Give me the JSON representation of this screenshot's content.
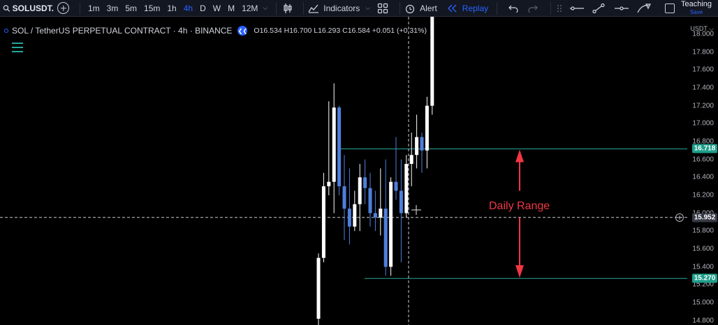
{
  "toolbar": {
    "symbol": "SOLUSDT.",
    "intervals": [
      "1m",
      "3m",
      "5m",
      "15m",
      "1h",
      "4h",
      "D",
      "W",
      "M",
      "12M"
    ],
    "active_interval": "4h",
    "indicators_label": "Indicators",
    "alert_label": "Alert",
    "replay_label": "Replay",
    "teaching_label": "Teaching",
    "teaching_sub": "Save"
  },
  "legend": {
    "title": "SOL / TetherUS PERPETUAL CONTRACT · 4h · BINANCE",
    "ohlc": "O16.534 H16.700 L16.293 C16.584 +0.051 (+0.31%)"
  },
  "axis": {
    "currency": "USDT",
    "ticks": [
      "18.000",
      "17.800",
      "17.600",
      "17.400",
      "17.200",
      "17.000",
      "16.800",
      "16.600",
      "16.400",
      "16.200",
      "16.000",
      "15.800",
      "15.600",
      "15.400",
      "15.200",
      "15.000",
      "14.800"
    ],
    "tags": {
      "upper": "16.718",
      "cross": "15.952",
      "lower": "15.270"
    }
  },
  "annotation": "Daily Range",
  "colors": {
    "up": "#ffffff",
    "down": "#4f7fdc",
    "accent": "#2962ff",
    "level": "#26a69a",
    "annotation": "#f23645"
  },
  "chart_data": {
    "type": "candlestick",
    "symbol": "SOL / TetherUS PERPETUAL CONTRACT",
    "timeframe": "4h",
    "price_range": [
      14.8,
      18.0
    ],
    "horizontal_levels": [
      16.718,
      15.27
    ],
    "crosshair_price": 15.952,
    "candles": [
      {
        "o": 14.82,
        "h": 15.55,
        "l": 14.6,
        "c": 15.5
      },
      {
        "o": 15.5,
        "h": 16.45,
        "l": 15.45,
        "c": 16.3
      },
      {
        "o": 16.3,
        "h": 17.25,
        "l": 16.2,
        "c": 16.35
      },
      {
        "o": 16.35,
        "h": 17.45,
        "l": 16.0,
        "c": 17.18
      },
      {
        "o": 17.18,
        "h": 17.2,
        "l": 16.2,
        "c": 16.3
      },
      {
        "o": 16.3,
        "h": 16.65,
        "l": 15.7,
        "c": 16.05
      },
      {
        "o": 16.05,
        "h": 16.5,
        "l": 15.65,
        "c": 15.85
      },
      {
        "o": 15.85,
        "h": 16.25,
        "l": 15.8,
        "c": 16.1
      },
      {
        "o": 16.1,
        "h": 16.55,
        "l": 15.8,
        "c": 16.4
      },
      {
        "o": 16.4,
        "h": 16.6,
        "l": 16.1,
        "c": 16.28
      },
      {
        "o": 16.28,
        "h": 16.45,
        "l": 15.85,
        "c": 16.0
      },
      {
        "o": 16.0,
        "h": 16.25,
        "l": 15.8,
        "c": 15.95
      },
      {
        "o": 15.95,
        "h": 16.5,
        "l": 15.75,
        "c": 16.05
      },
      {
        "o": 16.05,
        "h": 16.6,
        "l": 15.3,
        "c": 15.4
      },
      {
        "o": 15.4,
        "h": 16.4,
        "l": 15.3,
        "c": 16.35
      },
      {
        "o": 16.35,
        "h": 16.85,
        "l": 16.15,
        "c": 16.25
      },
      {
        "o": 16.25,
        "h": 16.6,
        "l": 15.45,
        "c": 16.0
      },
      {
        "o": 16.0,
        "h": 16.65,
        "l": 15.95,
        "c": 16.55
      },
      {
        "o": 16.55,
        "h": 16.9,
        "l": 16.3,
        "c": 16.65
      },
      {
        "o": 16.65,
        "h": 17.1,
        "l": 16.5,
        "c": 16.85
      },
      {
        "o": 16.85,
        "h": 16.9,
        "l": 16.45,
        "c": 16.7
      },
      {
        "o": 16.7,
        "h": 17.3,
        "l": 16.5,
        "c": 17.2
      },
      {
        "o": 17.2,
        "h": 18.25,
        "l": 17.1,
        "c": 18.2
      }
    ]
  }
}
